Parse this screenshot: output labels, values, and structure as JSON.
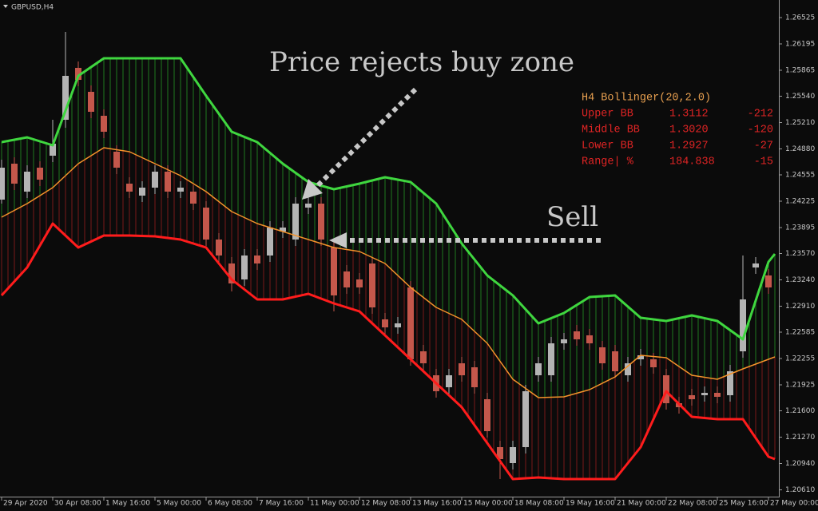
{
  "symbol": "GBPUSD,H4",
  "annotations": [
    "Price rejects buy zone",
    "Sell"
  ],
  "indicator_panel": {
    "title": "H4 Bollinger(20,2.0)",
    "rows": [
      [
        "1.3112",
        "-212"
      ],
      [
        "1.3020",
        "-120"
      ],
      [
        "1.2927",
        "-27"
      ]
    ],
    "range_row": [
      "Range| %",
      "184.838",
      "-15"
    ]
  },
  "chart_data": {
    "type": "candlestick",
    "xlim": [
      -0.25,
      121.625
    ],
    "ylim": [
      1.20525,
      1.26745
    ],
    "yticks": [
      1.26525,
      1.26195,
      1.25865,
      {
        "value": 1.2554,
        "label": "1.25540"
      },
      {
        "value": 1.2521,
        "label": "1.25210"
      },
      {
        "value": 1.2488,
        "label": "1.24880"
      },
      1.24555,
      1.24225,
      1.23895,
      {
        "value": 1.2357,
        "label": "1.23570"
      },
      {
        "value": 1.2324,
        "label": "1.23240"
      },
      {
        "value": 1.2291,
        "label": "1.22910"
      },
      1.22585,
      1.22255,
      1.21925,
      {
        "value": 1.216,
        "label": "1.21600"
      },
      {
        "value": 1.2127,
        "label": "1.21270"
      },
      {
        "value": 1.2094,
        "label": "1.20940"
      },
      {
        "value": 1.2061,
        "label": "1.20610"
      }
    ],
    "xticks": [
      {
        "value": 0,
        "label": "29 Apr 2020"
      },
      {
        "value": 8,
        "label": "30 Apr 08:00"
      },
      {
        "value": 16,
        "label": "1 May 16:00"
      },
      {
        "value": 24,
        "label": "5 May 00:00"
      },
      {
        "value": 32,
        "label": "6 May 08:00"
      },
      {
        "value": 40,
        "label": "7 May 16:00"
      },
      {
        "value": 48,
        "label": "11 May 00:00"
      },
      {
        "value": 56,
        "label": "12 May 08:00"
      },
      {
        "value": 64,
        "label": "13 May 16:00"
      },
      {
        "value": 72,
        "label": "15 May 00:00"
      },
      {
        "value": 80,
        "label": "18 May 08:00"
      },
      {
        "value": 88,
        "label": "19 May 16:00"
      },
      {
        "value": 96,
        "label": "21 May 00:00"
      },
      {
        "value": 104,
        "label": "22 May 08:00"
      },
      {
        "value": 112,
        "label": "25 May 16:00"
      },
      {
        "value": 120,
        "label": "27 May 00:00"
      }
    ],
    "up_color": "#b4b4b4",
    "down_color": "#c4574b",
    "candles": {
      "x": [
        0,
        2,
        4,
        6,
        8,
        10,
        12,
        14,
        16,
        18,
        20,
        22,
        24,
        26,
        28,
        30,
        32,
        34,
        36,
        38,
        40,
        42,
        44,
        46,
        48,
        50,
        52,
        54,
        56,
        58,
        60,
        62,
        64,
        66,
        68,
        70,
        72,
        74,
        76,
        78,
        80,
        82,
        84,
        86,
        88,
        90,
        92,
        94,
        96,
        98,
        100,
        102,
        104,
        106,
        108,
        110,
        112,
        114,
        116,
        118,
        120
      ],
      "open": [
        1.24245,
        1.24695,
        1.24345,
        1.24645,
        1.24795,
        1.25245,
        1.25895,
        1.25595,
        1.25295,
        1.24845,
        1.24445,
        1.24295,
        1.24395,
        1.24595,
        1.24345,
        1.24345,
        1.24145,
        1.23745,
        1.23445,
        1.23245,
        1.23545,
        1.23545,
        1.23845,
        1.23745,
        1.24145,
        1.24195,
        1.23645,
        1.23345,
        1.23245,
        1.23445,
        1.22745,
        1.22645,
        1.23145,
        1.22345,
        1.22045,
        1.21895,
        1.22195,
        1.22145,
        1.21745,
        1.21145,
        1.20945,
        1.21145,
        1.22045,
        1.22045,
        1.22445,
        1.22595,
        1.22545,
        1.22395,
        1.22345,
        1.22045,
        1.22245,
        1.22245,
        1.22045,
        1.21695,
        1.21795,
        1.21795,
        1.21825,
        1.21795,
        1.22345,
        1.23395,
        1.23295
      ],
      "close": [
        1.24645,
        1.24445,
        1.24595,
        1.24495,
        1.24945,
        1.25795,
        1.25745,
        1.25345,
        1.25095,
        1.24645,
        1.24345,
        1.24395,
        1.24595,
        1.24345,
        1.24395,
        1.24195,
        1.23745,
        1.23545,
        1.23195,
        1.23545,
        1.23445,
        1.23895,
        1.23895,
        1.24195,
        1.24195,
        1.23745,
        1.23045,
        1.23145,
        1.23145,
        1.22895,
        1.22645,
        1.22695,
        1.22245,
        1.22195,
        1.21845,
        1.22045,
        1.22045,
        1.21895,
        1.21345,
        1.20995,
        1.21145,
        1.21845,
        1.22195,
        1.22445,
        1.22495,
        1.22495,
        1.22445,
        1.22195,
        1.22095,
        1.22195,
        1.22295,
        1.22145,
        1.21695,
        1.21645,
        1.21745,
        1.21825,
        1.21775,
        1.22095,
        1.22995,
        1.23445,
        1.23145
      ],
      "high": [
        1.24745,
        1.24775,
        1.24675,
        1.24725,
        1.25245,
        1.26345,
        1.25975,
        1.25675,
        1.25375,
        1.24925,
        1.24525,
        1.24475,
        1.24675,
        1.24675,
        1.24475,
        1.24425,
        1.24225,
        1.23825,
        1.23525,
        1.23625,
        1.23625,
        1.23975,
        1.23975,
        1.24275,
        1.24295,
        1.24275,
        1.23725,
        1.23425,
        1.23325,
        1.23525,
        1.22825,
        1.22775,
        1.23225,
        1.22425,
        1.22125,
        1.22125,
        1.22275,
        1.22225,
        1.21825,
        1.21225,
        1.21225,
        1.21925,
        1.22275,
        1.22525,
        1.22575,
        1.22675,
        1.22625,
        1.22475,
        1.22425,
        1.22275,
        1.22375,
        1.22325,
        1.22125,
        1.21775,
        1.21875,
        1.21905,
        1.21905,
        1.22175,
        1.23545,
        1.23525,
        1.23375
      ],
      "low": [
        1.24195,
        1.24365,
        1.24265,
        1.24415,
        1.24715,
        1.25145,
        1.25665,
        1.25265,
        1.25015,
        1.24565,
        1.24265,
        1.24215,
        1.24315,
        1.24265,
        1.24265,
        1.24115,
        1.23665,
        1.23465,
        1.23095,
        1.23165,
        1.23365,
        1.23465,
        1.23765,
        1.23665,
        1.24065,
        1.23665,
        1.22845,
        1.23065,
        1.23065,
        1.22815,
        1.22565,
        1.22565,
        1.22165,
        1.22115,
        1.21765,
        1.21815,
        1.21965,
        1.21815,
        1.21265,
        1.20745,
        1.20865,
        1.21065,
        1.21965,
        1.21965,
        1.22365,
        1.22415,
        1.22365,
        1.22115,
        1.22015,
        1.21965,
        1.22165,
        1.22065,
        1.21615,
        1.21565,
        1.21665,
        1.21715,
        1.21695,
        1.21715,
        1.22265,
        1.23315,
        1.23065
      ]
    },
    "band_x": [
      0,
      4,
      8,
      12,
      16,
      20,
      24,
      28,
      32,
      36,
      40,
      44,
      48,
      52,
      56,
      60,
      64,
      68,
      72,
      76,
      80,
      84,
      88,
      92,
      96,
      100,
      104,
      108,
      112,
      116,
      120,
      121
    ],
    "series": [
      {
        "name": "Upper BB",
        "color": "#3fd63f",
        "fill_color": "#1f7a1f",
        "values": [
          1.24965,
          1.25025,
          1.24925,
          1.25795,
          1.26015,
          1.26015,
          1.26015,
          1.26015,
          1.25545,
          1.25095,
          1.24965,
          1.24695,
          1.24465,
          1.24375,
          1.24445,
          1.24525,
          1.24465,
          1.24195,
          1.23695,
          1.23295,
          1.23045,
          1.22695,
          1.22825,
          1.23025,
          1.23045,
          1.22765,
          1.22725,
          1.22795,
          1.22725,
          1.22495,
          1.23465,
          1.23565
        ]
      },
      {
        "name": "Middle BB",
        "color": "#f4922b",
        "fill_color": "#7a1a1a",
        "values": [
          1.24025,
          1.24195,
          1.24395,
          1.24695,
          1.24895,
          1.24845,
          1.24695,
          1.24545,
          1.24345,
          1.24095,
          1.23945,
          1.23845,
          1.23745,
          1.23645,
          1.23595,
          1.23445,
          1.23145,
          1.22895,
          1.22745,
          1.22445,
          1.21995,
          1.21765,
          1.21775,
          1.21865,
          1.22025,
          1.22295,
          1.22265,
          1.22045,
          1.21995,
          1.22125,
          1.22245,
          1.22275
        ]
      },
      {
        "name": "Lower BB",
        "color": "#ff1c1c",
        "values": [
          1.23045,
          1.23395,
          1.23945,
          1.23645,
          1.23795,
          1.23795,
          1.23785,
          1.23745,
          1.23645,
          1.23245,
          1.22995,
          1.22995,
          1.23065,
          1.22945,
          1.22845,
          1.22545,
          1.22245,
          1.21945,
          1.21645,
          1.21195,
          1.20745,
          1.20765,
          1.20745,
          1.20745,
          1.20745,
          1.21145,
          1.21845,
          1.21525,
          1.21495,
          1.21495,
          1.21025,
          1.20995
        ]
      }
    ]
  }
}
